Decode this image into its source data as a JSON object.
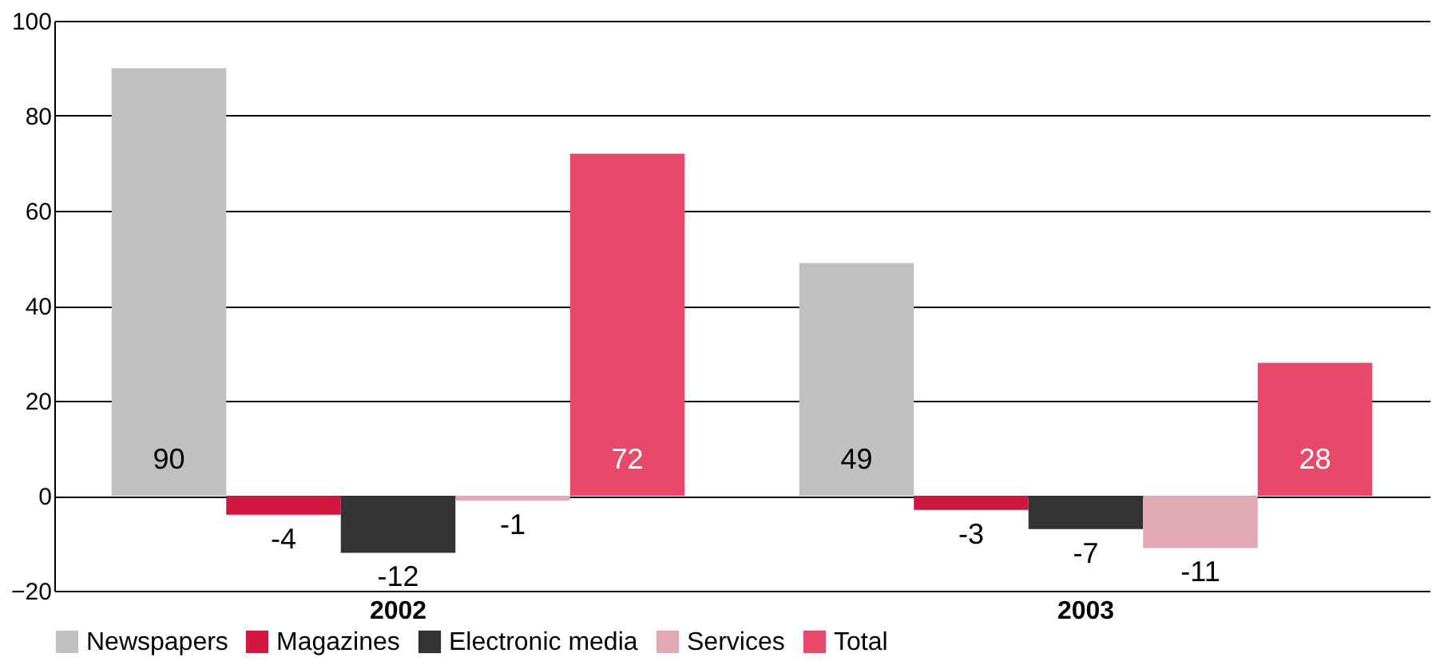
{
  "chart_data": {
    "type": "bar",
    "categories": [
      "2002",
      "2003"
    ],
    "series": [
      {
        "name": "Newspapers",
        "color": "#c0c0c0",
        "values": [
          90,
          49
        ]
      },
      {
        "name": "Magazines",
        "color": "#d0173f",
        "values": [
          -4,
          -3
        ]
      },
      {
        "name": "Electronic media",
        "color": "#333333",
        "values": [
          -12,
          -7
        ]
      },
      {
        "name": "Services",
        "color": "#e3a9b5",
        "values": [
          -1,
          -11
        ]
      },
      {
        "name": "Total",
        "color": "#e8486a",
        "values": [
          72,
          28
        ]
      }
    ],
    "ylim": [
      -20,
      100
    ],
    "yticks": [
      -20,
      0,
      20,
      40,
      60,
      80,
      100
    ],
    "grid": "y",
    "legend": "bottom",
    "data_labels": true
  }
}
